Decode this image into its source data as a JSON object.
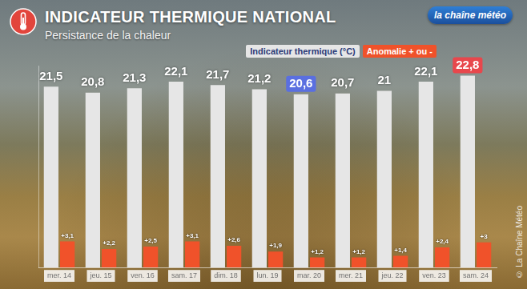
{
  "chart_data": {
    "type": "bar",
    "title": "INDICATEUR THERMIQUE NATIONAL",
    "subtitle": "Persistance de la chaleur",
    "categories": [
      "mer. 14",
      "jeu. 15",
      "ven. 16",
      "sam. 17",
      "dim. 18",
      "lun. 19",
      "mar. 20",
      "mer. 21",
      "jeu. 22",
      "ven. 23",
      "sam. 24"
    ],
    "series": [
      {
        "name": "Indicateur thermique (°C)",
        "color": "#e6e6e6",
        "values": [
          21.5,
          20.8,
          21.3,
          22.1,
          21.7,
          21.2,
          20.6,
          20.7,
          21,
          22.1,
          22.8
        ],
        "value_labels": [
          "21,5",
          "20,8",
          "21,3",
          "22,1",
          "21,7",
          "21,2",
          "20,6",
          "20,7",
          "21",
          "22,1",
          "22,8"
        ]
      },
      {
        "name": "Anomalie + ou -",
        "color": "#f0522a",
        "values": [
          3.1,
          2.2,
          2.5,
          3.1,
          2.6,
          1.9,
          1.2,
          1.2,
          1.4,
          2.4,
          3
        ],
        "value_labels": [
          "+3,1",
          "+2,2",
          "+2,5",
          "+3,1",
          "+2,6",
          "+1,9",
          "+1,2",
          "+1,2",
          "+1,4",
          "+2,4",
          "+3"
        ]
      }
    ],
    "ylim": [
      0,
      24
    ],
    "yticks": [],
    "grid": false,
    "legend": "top-right",
    "data_labels": true,
    "tick_labels": "x",
    "annotations": [
      "la chaîne météo",
      "© La Chaîne Météo"
    ]
  }
}
